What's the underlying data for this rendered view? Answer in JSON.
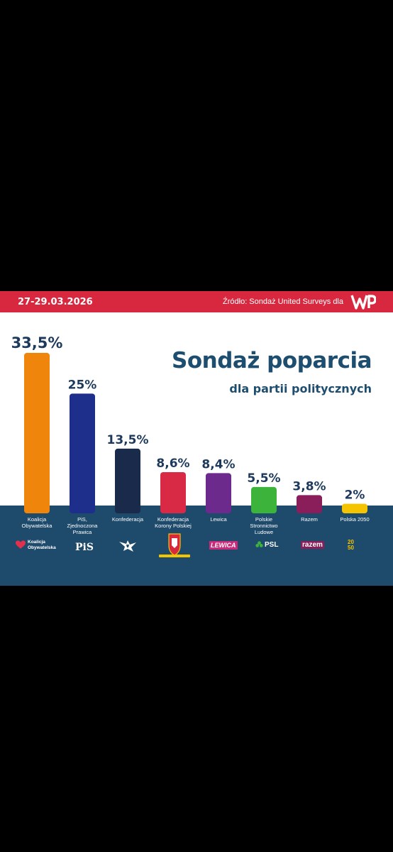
{
  "header": {
    "date": "27-29.03.2026",
    "source": "Źródło: Sondaż United Surveys dla"
  },
  "title": "Sondaż poparcia",
  "subtitle": "dla partii politycznych",
  "logos": {
    "ko_line1": "Koalicja",
    "ko_line2": "Obywatelska",
    "pis": "PiS",
    "lewica": "LEWICA",
    "psl": "PSL",
    "razem": "razem",
    "polska2050": "20 50"
  },
  "colors": {
    "accent_red": "#d8283f",
    "navy_band": "#1e4a6b",
    "title_blue": "#1d4d6f"
  },
  "chart_data": {
    "type": "bar",
    "categories": [
      [
        "Koalicja",
        "Obywatelska"
      ],
      [
        "PiS,",
        "Zjednoczona",
        "Prawica"
      ],
      [
        "Konfederacja"
      ],
      [
        "Konfederacja",
        "Korony Polskiej"
      ],
      [
        "Lewica"
      ],
      [
        "Polskie",
        "Stronnictwo",
        "Ludowe"
      ],
      [
        "Razem"
      ],
      [
        "Polska 2050"
      ]
    ],
    "values": [
      33.5,
      25,
      13.5,
      8.6,
      8.4,
      5.5,
      3.8,
      2
    ],
    "value_labels": [
      "33,5%",
      "25%",
      "13,5%",
      "8,6%",
      "8,4%",
      "5,5%",
      "3,8%",
      "2%"
    ],
    "colors": [
      "#f0850c",
      "#1d2f8a",
      "#1a2a4a",
      "#d82a45",
      "#6b2a8c",
      "#3cb43c",
      "#8a1e5a",
      "#f5c400"
    ],
    "title": "Sondaż poparcia",
    "subtitle": "dla partii politycznych",
    "ylim": [
      0,
      33.5
    ],
    "grid": false,
    "legend": "none"
  }
}
